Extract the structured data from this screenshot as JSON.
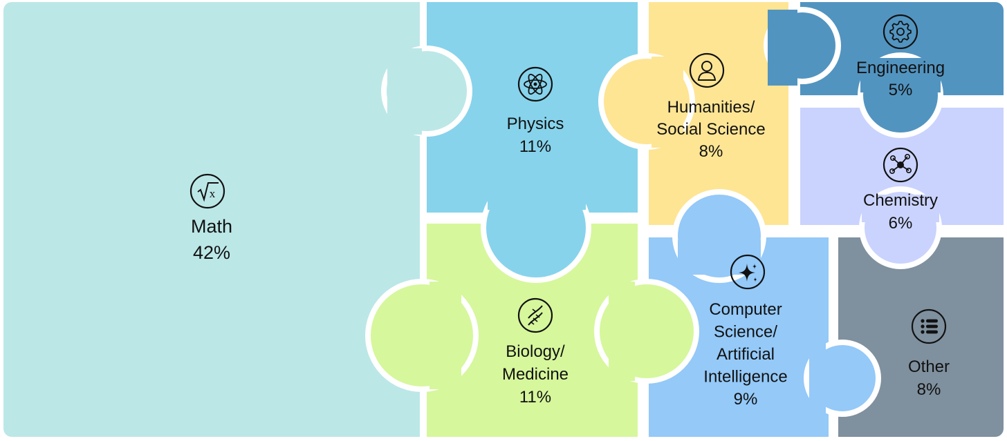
{
  "chart_data": {
    "type": "treemap",
    "categories": [
      {
        "name": "Math",
        "label_lines": [
          "Math"
        ],
        "percent_label": "42%",
        "value": 42,
        "color": "#bce7e7",
        "icon": "square-root-icon"
      },
      {
        "name": "Physics",
        "label_lines": [
          "Physics"
        ],
        "percent_label": "11%",
        "value": 11,
        "color": "#87d3ec",
        "icon": "atom-icon"
      },
      {
        "name": "Biology/Medicine",
        "label_lines": [
          "Biology/",
          "Medicine"
        ],
        "percent_label": "11%",
        "value": 11,
        "color": "#d6f79c",
        "icon": "dna-icon"
      },
      {
        "name": "Humanities/Social Science",
        "label_lines": [
          "Humanities/",
          "Social Science"
        ],
        "percent_label": "8%",
        "value": 8,
        "color": "#fee594",
        "icon": "person-icon"
      },
      {
        "name": "Computer Science/Artificial Intelligence",
        "label_lines": [
          "Computer",
          "Science/",
          "Artificial",
          "Intelligence"
        ],
        "percent_label": "9%",
        "value": 9,
        "color": "#94c9f8",
        "icon": "sparkle-icon"
      },
      {
        "name": "Engineering",
        "label_lines": [
          "Engineering"
        ],
        "percent_label": "5%",
        "value": 5,
        "color": "#5294c0",
        "icon": "gear-icon"
      },
      {
        "name": "Chemistry",
        "label_lines": [
          "Chemistry"
        ],
        "percent_label": "6%",
        "value": 6,
        "color": "#cad3fd",
        "icon": "molecule-icon"
      },
      {
        "name": "Other",
        "label_lines": [
          "Other"
        ],
        "percent_label": "8%",
        "value": 8,
        "color": "#7f909e",
        "icon": "list-icon"
      }
    ]
  }
}
